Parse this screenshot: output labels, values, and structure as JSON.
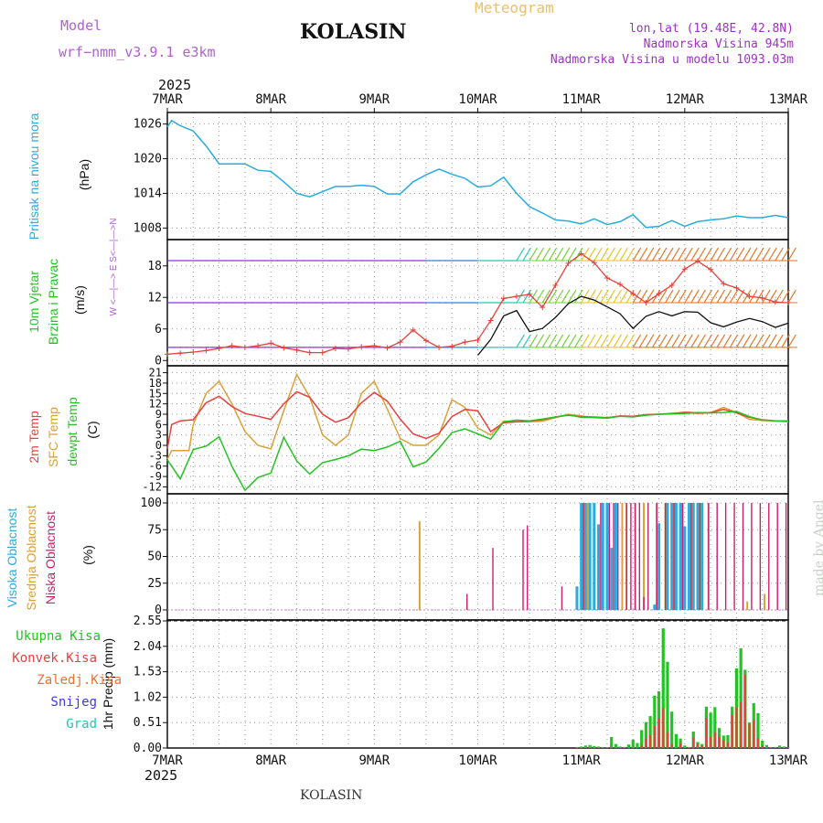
{
  "header": {
    "model_label": "Model",
    "model_name": "wrf−nmm_v3.9.1  e3km",
    "title": "KOLASIN",
    "subtitle": "Meteogram",
    "coords": "lon,lat (19.48E, 42.8N)",
    "elevation": "Nadmorska Visina 945m",
    "model_elevation": "Nadmorska Visina u modelu 1093.03m"
  },
  "footer": {
    "title": "KOLASIN",
    "credit": "made by Angel"
  },
  "colors": {
    "pressure": "#29abe2",
    "wind_calm": "#8a2be2",
    "wind_speed": "#e8413c",
    "wind_gust": "#111111",
    "temp2m": "#e8413c",
    "sfc_temp": "#daa03a",
    "dewpt": "#22c422",
    "cloud_high": "#29abe2",
    "cloud_mid": "#daa03a",
    "cloud_low": "#cc1f6b",
    "precip_total": "#22c422",
    "precip_conv": "#e8413c",
    "precip_frozen": "#f07030",
    "snow": "#3a3ae6",
    "grad": "#20c8b0",
    "grid": "#999999"
  },
  "chart_data": [
    {
      "id": "pressure",
      "type": "line",
      "ylabel_lines": [
        "Pritisak na nivou mora"
      ],
      "unit": "(hPa)",
      "xrange": [
        0,
        144
      ],
      "ylim": [
        1006,
        1028
      ],
      "yticks": [
        1008,
        1014,
        1020,
        1026
      ],
      "x_top_year": "2025",
      "x_ticks": [
        "7MAR",
        "8MAR",
        "9MAR",
        "10MAR",
        "11MAR",
        "12MAR",
        "13MAR"
      ],
      "series": [
        {
          "name": "MSL pressure",
          "x": [
            0,
            1,
            3,
            6,
            9,
            12,
            15,
            18,
            21,
            24,
            27,
            30,
            33,
            36,
            39,
            42,
            45,
            48,
            51,
            54,
            57,
            60,
            63,
            66,
            69,
            72,
            75,
            78,
            81,
            84,
            87,
            90,
            93,
            96,
            99,
            102,
            105,
            108,
            111,
            114,
            117,
            120,
            123,
            126,
            129,
            132,
            135,
            138,
            141,
            144
          ],
          "y": [
            1025.5,
            1026.6,
            1025.7,
            1024.8,
            1022.2,
            1019.1,
            1019.1,
            1019.1,
            1018,
            1017.8,
            1016,
            1014,
            1013.4,
            1014.3,
            1015.2,
            1015.2,
            1015.4,
            1015.2,
            1013.9,
            1013.9,
            1016,
            1017.2,
            1018.2,
            1017.3,
            1016.6,
            1015.1,
            1015.3,
            1016.8,
            1014,
            1011.7,
            1010.6,
            1009.4,
            1009.2,
            1008.7,
            1009.6,
            1008.6,
            1009.1,
            1010.3,
            1008.1,
            1008.3,
            1009.3,
            1008.3,
            1009.1,
            1009.4,
            1009.6,
            1010.1,
            1009.8,
            1009.8,
            1010.2,
            1009.8
          ]
        }
      ]
    },
    {
      "id": "wind",
      "type": "barbs+line",
      "ylabel_lines": [
        "10m Vjetar",
        "Brzina i Pravac"
      ],
      "unit": "(m/s)",
      "compass": "W <—|—> E   S<—|—>N",
      "xrange": [
        0,
        144
      ],
      "ylim": [
        -1,
        23
      ],
      "yticks": [
        0,
        6,
        12,
        18
      ],
      "series": [
        {
          "name": "10m wind speed",
          "x": [
            0,
            3,
            6,
            9,
            12,
            15,
            18,
            21,
            24,
            27,
            30,
            33,
            36,
            39,
            42,
            45,
            48,
            51,
            54,
            57,
            60,
            63,
            66,
            69,
            72,
            75,
            78,
            81,
            84,
            87,
            90,
            93,
            96,
            99,
            102,
            105,
            108,
            111,
            114,
            117,
            120,
            123,
            126,
            129,
            132,
            135,
            138,
            141,
            144
          ],
          "y": [
            1.2,
            1.4,
            1.6,
            1.9,
            2.3,
            2.8,
            2.5,
            2.8,
            3.3,
            2.4,
            2.0,
            1.5,
            1.5,
            2.3,
            2.2,
            2.6,
            2.8,
            2.4,
            3.5,
            5.8,
            3.8,
            2.5,
            2.7,
            3.5,
            3.9,
            7.6,
            11.8,
            12.2,
            12.6,
            10.1,
            14.3,
            18.5,
            20.3,
            18.6,
            15.7,
            14.5,
            12.7,
            11.0,
            12.7,
            14.3,
            17.4,
            18.9,
            17.3,
            14.6,
            13.8,
            12.2,
            11.9,
            11.1,
            11.0
          ]
        },
        {
          "name": "10m wind gust",
          "x": [
            72,
            75,
            78,
            81,
            84,
            87,
            90,
            93,
            96,
            99,
            102,
            105,
            108,
            111,
            114,
            117,
            120,
            123,
            126,
            129,
            132,
            135,
            138,
            141,
            144
          ],
          "y": [
            1,
            4,
            8.5,
            9.5,
            5.5,
            6.1,
            8.2,
            10.8,
            12.2,
            11.5,
            10.2,
            8.9,
            6.1,
            8.4,
            9.3,
            8.5,
            9.3,
            9.2,
            7.2,
            6.4,
            7.3,
            8,
            7.4,
            6.3,
            7.1
          ]
        }
      ]
    },
    {
      "id": "temperature",
      "type": "line",
      "ylabel_lines": [
        "2m Temp",
        "SFC Temp",
        "dewpt Temp"
      ],
      "unit": "(C)",
      "xrange": [
        0,
        144
      ],
      "ylim": [
        -14,
        23
      ],
      "yticks": [
        -12,
        -9,
        -6,
        -3,
        0,
        3,
        6,
        9,
        12,
        15,
        18,
        21
      ],
      "series": [
        {
          "name": "2m Temp",
          "x": [
            0,
            1,
            3,
            6,
            9,
            12,
            15,
            18,
            21,
            24,
            27,
            30,
            33,
            36,
            39,
            42,
            45,
            48,
            51,
            54,
            57,
            60,
            63,
            66,
            69,
            72,
            75,
            78,
            81,
            84,
            87,
            90,
            93,
            96,
            99,
            102,
            105,
            108,
            111,
            114,
            117,
            120,
            123,
            126,
            129,
            132,
            135,
            138,
            141,
            144
          ],
          "y": [
            -1,
            6,
            7.1,
            7.4,
            12.3,
            14.2,
            11.2,
            9.2,
            8.4,
            7.5,
            12,
            15.5,
            13.9,
            9,
            6.7,
            8,
            12.3,
            15.3,
            12.8,
            7.6,
            3.3,
            2,
            3.5,
            8.3,
            10.4,
            10,
            4,
            6.5,
            6.8,
            7,
            7.4,
            8.2,
            8.7,
            8.3,
            8.2,
            8,
            8.5,
            8.4,
            8.9,
            9,
            9.1,
            9.6,
            9.4,
            9.5,
            10.4,
            9.4,
            8.1,
            7.4,
            7.1,
            7
          ]
        },
        {
          "name": "SFC Temp",
          "x": [
            0,
            1,
            3,
            5,
            6,
            9,
            12,
            15,
            18,
            21,
            24,
            27,
            30,
            33,
            36,
            39,
            42,
            45,
            48,
            51,
            54,
            57,
            60,
            63,
            66,
            69,
            72,
            75,
            78,
            81,
            84,
            87,
            90,
            93,
            96,
            99,
            102,
            105,
            108,
            111,
            114,
            117,
            120,
            123,
            126,
            129,
            132,
            135,
            138,
            141,
            144
          ],
          "y": [
            -4,
            -1.5,
            -1.5,
            -1.5,
            6,
            15,
            18.5,
            12,
            4,
            0,
            -1,
            10,
            20.5,
            14,
            3,
            0,
            3,
            15,
            18.5,
            10.5,
            2,
            0,
            0,
            3,
            13.2,
            11,
            5,
            3,
            7,
            6.8,
            6.8,
            7,
            8,
            9,
            8.5,
            8,
            7.8,
            8.5,
            8.3,
            8.8,
            9,
            9.3,
            9.5,
            9.2,
            9.4,
            11,
            9.5,
            7.5,
            7.2,
            7,
            6.8
          ]
        },
        {
          "name": "Dewpoint",
          "x": [
            0,
            1,
            3,
            6,
            9,
            12,
            15,
            18,
            21,
            24,
            27,
            30,
            33,
            36,
            39,
            42,
            45,
            48,
            51,
            54,
            57,
            60,
            63,
            66,
            69,
            72,
            75,
            78,
            81,
            84,
            87,
            90,
            93,
            96,
            99,
            102,
            105,
            108,
            111,
            114,
            117,
            120,
            123,
            126,
            129,
            132,
            135,
            138,
            141,
            144
          ],
          "y": [
            -4.2,
            -6,
            -9.7,
            -1.2,
            -0.2,
            2.5,
            -6.1,
            -13,
            -9.3,
            -8,
            2.3,
            -4.5,
            -8.3,
            -5,
            -4.1,
            -3,
            -1.1,
            -1.5,
            -0.5,
            1.2,
            -6.2,
            -4.8,
            -0.8,
            3.7,
            4.8,
            3.3,
            1.8,
            6.8,
            7.3,
            7.1,
            7.6,
            8.2,
            8.8,
            8.1,
            8.1,
            7.9,
            8.4,
            8.2,
            8.7,
            9,
            9.1,
            9.2,
            9.5,
            9.4,
            9.5,
            9.8,
            8.3,
            7.3,
            7.1,
            7.1
          ]
        }
      ]
    },
    {
      "id": "clouds",
      "type": "bar",
      "ylabel_lines": [
        "Visoka Oblacnost",
        "Srednja Oblacnost",
        "Niska Oblacnost"
      ],
      "unit": "(%)",
      "xrange": [
        0,
        144
      ],
      "ylim": [
        0,
        100
      ],
      "yticks": [
        0,
        25,
        50,
        75,
        100
      ],
      "series": [
        {
          "name": "Visoka Oblacnost",
          "x": [
            95,
            96,
            97,
            98,
            99,
            100,
            101,
            102,
            103,
            104,
            113,
            114,
            116,
            117,
            118,
            119,
            120,
            121,
            122,
            123,
            124
          ],
          "y": [
            22,
            100,
            100,
            100,
            100,
            80,
            100,
            100,
            58,
            100,
            5,
            81,
            100,
            100,
            100,
            100,
            78,
            100,
            100,
            100,
            100
          ]
        },
        {
          "name": "Srednja Oblacnost",
          "x": [
            58,
            96,
            97,
            105,
            106,
            108,
            110,
            113,
            115,
            117,
            119,
            121,
            123,
            125,
            134,
            138
          ],
          "y": [
            83,
            100,
            100,
            100,
            100,
            100,
            100,
            100,
            100,
            100,
            100,
            100,
            100,
            100,
            8,
            15
          ]
        },
        {
          "name": "Niska Oblacnost",
          "x": [
            70,
            76,
            83,
            84,
            92,
            97,
            101,
            103,
            104,
            105,
            107,
            108,
            109,
            110,
            111,
            112,
            114,
            116,
            118,
            120,
            122,
            124,
            126,
            128,
            130,
            132,
            134,
            136,
            138,
            140,
            142,
            144
          ],
          "y": [
            15,
            58,
            75,
            79,
            22,
            100,
            100,
            100,
            100,
            100,
            100,
            100,
            100,
            100,
            12,
            100,
            100,
            100,
            100,
            100,
            100,
            100,
            100,
            100,
            100,
            100,
            100,
            100,
            100,
            100,
            100,
            100
          ]
        }
      ]
    },
    {
      "id": "precip",
      "type": "bar",
      "ylabel_lines": [
        "1hr Precip (mm)"
      ],
      "legend": [
        "Ukupna Kisa",
        "Konvek.Kisa",
        "Zaledj.Kisa",
        "Snijeg",
        "Grad"
      ],
      "xrange": [
        0,
        144
      ],
      "ylim": [
        0,
        2.55
      ],
      "yticks": [
        0,
        0.51,
        1.02,
        1.53,
        2.04,
        2.55
      ],
      "x_bottom_year": "2025",
      "series": [
        {
          "name": "Ukupna Kisa",
          "x": [
            95,
            96,
            97,
            98,
            99,
            100,
            101,
            102,
            103,
            104,
            105,
            106,
            107,
            108,
            109,
            110,
            111,
            112,
            113,
            114,
            115,
            116,
            117,
            118,
            119,
            120,
            121,
            122,
            123,
            124,
            125,
            126,
            127,
            128,
            129,
            130,
            131,
            132,
            133,
            134,
            135,
            136,
            137,
            138,
            139,
            140,
            141,
            142,
            143,
            144
          ],
          "y": [
            0.02,
            0.03,
            0.05,
            0.06,
            0.04,
            0.03,
            0.02,
            0.01,
            0.22,
            0.08,
            0.03,
            0.02,
            0.07,
            0.17,
            0.1,
            0.36,
            0.52,
            0.64,
            1.05,
            1.14,
            2.4,
            1.73,
            0.73,
            0.28,
            0.19,
            0.05,
            0.02,
            0.33,
            0.12,
            0.08,
            0.83,
            0.71,
            0.82,
            0.4,
            0.25,
            0.26,
            0.83,
            1.6,
            2.0,
            1.57,
            0.51,
            0.9,
            0.7,
            0.15,
            0.06,
            0.02,
            0.02,
            0.05,
            0.03,
            0.01
          ]
        },
        {
          "name": "Konvek.Kisa",
          "x": [
            108,
            109,
            110,
            111,
            112,
            113,
            114,
            115,
            116,
            117,
            118,
            119,
            120,
            121,
            122,
            123,
            124,
            125,
            126,
            127,
            128,
            129,
            130,
            131,
            132,
            133,
            134,
            135,
            136,
            137,
            138,
            139,
            140
          ],
          "y": [
            0,
            0,
            0.06,
            0.18,
            0.26,
            0.44,
            0.6,
            0.8,
            0.32,
            0.08,
            0,
            0.1,
            0,
            0,
            0.21,
            0.08,
            0.05,
            0.6,
            0.22,
            0.32,
            0.23,
            0.16,
            0.12,
            0.66,
            0.82,
            0.92,
            1.47,
            0.5,
            0.56,
            0.2,
            0.05,
            0,
            0
          ]
        }
      ]
    }
  ]
}
